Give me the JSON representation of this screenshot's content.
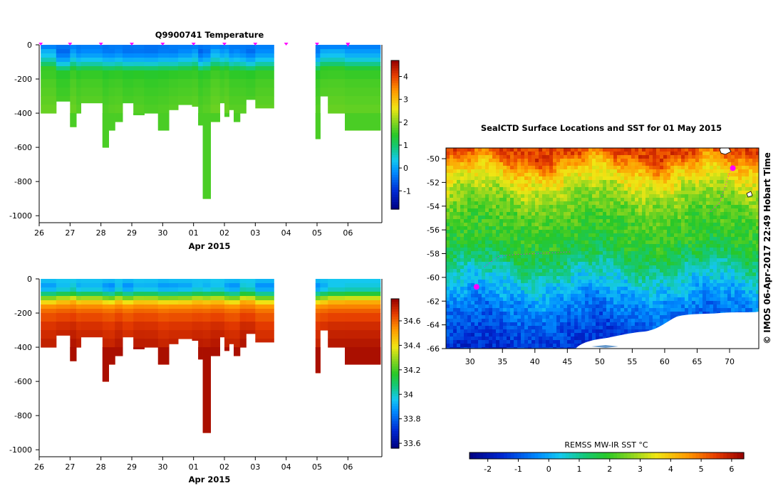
{
  "chart_data": [
    {
      "type": "heatmap",
      "name": "temperature-section",
      "title": "Q9900741  Temperature",
      "xlabel": "Apr 2015",
      "x_tick_labels": [
        "26",
        "27",
        "28",
        "29",
        "30",
        "01",
        "02",
        "03",
        "04",
        "05",
        "06"
      ],
      "x_range": [
        26,
        37.1
      ],
      "y_ticks": [
        0,
        -200,
        -400,
        -600,
        -800,
        -1000
      ],
      "ylim": [
        -1020,
        0
      ],
      "colorbar": {
        "min": -1.8,
        "max": 4.7,
        "ticks": [
          -1,
          0,
          1,
          2,
          3,
          4
        ]
      },
      "profile_dates": [
        26.05,
        27.0,
        28.0,
        29.0,
        30.0,
        31.0,
        32.0,
        33.0,
        34.0,
        35.0,
        36.0
      ],
      "gap": [
        34.35,
        34.95
      ],
      "depth_bins": [
        0,
        -25,
        -50,
        -75,
        -100,
        -125,
        -150,
        -200,
        -250,
        -300,
        -350,
        -400
      ],
      "profile_levels": [
        -0.3,
        -0.2,
        0.0,
        0.3,
        0.7,
        1.2,
        1.5,
        1.6,
        1.65,
        1.7,
        1.75,
        1.75
      ],
      "profiles": [
        {
          "x0": 26.05,
          "x1": 26.55,
          "max_depth": 400
        },
        {
          "x0": 26.55,
          "x1": 27.0,
          "max_depth": 330
        },
        {
          "x0": 27.0,
          "x1": 27.2,
          "max_depth": 480
        },
        {
          "x0": 27.2,
          "x1": 27.35,
          "max_depth": 400
        },
        {
          "x0": 27.35,
          "x1": 28.05,
          "max_depth": 340
        },
        {
          "x0": 28.05,
          "x1": 28.25,
          "max_depth": 600
        },
        {
          "x0": 28.25,
          "x1": 28.45,
          "max_depth": 500
        },
        {
          "x0": 28.45,
          "x1": 28.7,
          "max_depth": 450
        },
        {
          "x0": 28.7,
          "x1": 29.05,
          "max_depth": 340
        },
        {
          "x0": 29.05,
          "x1": 29.4,
          "max_depth": 410
        },
        {
          "x0": 29.4,
          "x1": 29.85,
          "max_depth": 400
        },
        {
          "x0": 29.85,
          "x1": 30.2,
          "max_depth": 500
        },
        {
          "x0": 30.2,
          "x1": 30.5,
          "max_depth": 380
        },
        {
          "x0": 30.5,
          "x1": 30.95,
          "max_depth": 350
        },
        {
          "x0": 30.95,
          "x1": 31.15,
          "max_depth": 360
        },
        {
          "x0": 31.15,
          "x1": 31.3,
          "max_depth": 470
        },
        {
          "x0": 31.3,
          "x1": 31.55,
          "max_depth": 900
        },
        {
          "x0": 31.55,
          "x1": 31.85,
          "max_depth": 450
        },
        {
          "x0": 31.85,
          "x1": 32.0,
          "max_depth": 340
        },
        {
          "x0": 32.0,
          "x1": 32.15,
          "max_depth": 420
        },
        {
          "x0": 32.15,
          "x1": 32.3,
          "max_depth": 380
        },
        {
          "x0": 32.3,
          "x1": 32.5,
          "max_depth": 450
        },
        {
          "x0": 32.5,
          "x1": 32.7,
          "max_depth": 400
        },
        {
          "x0": 32.7,
          "x1": 33.0,
          "max_depth": 320
        },
        {
          "x0": 33.0,
          "x1": 33.6,
          "max_depth": 370
        },
        {
          "x0": 34.95,
          "x1": 35.1,
          "max_depth": 550
        },
        {
          "x0": 35.1,
          "x1": 35.35,
          "max_depth": 300
        },
        {
          "x0": 35.35,
          "x1": 35.9,
          "max_depth": 400
        },
        {
          "x0": 35.9,
          "x1": 37.05,
          "max_depth": 500
        }
      ]
    },
    {
      "type": "heatmap",
      "name": "salinity-section",
      "title": "",
      "xlabel": "Apr 2015",
      "x_tick_labels": [
        "26",
        "27",
        "28",
        "29",
        "30",
        "01",
        "02",
        "03",
        "04",
        "05",
        "06"
      ],
      "x_range": [
        26,
        37.1
      ],
      "y_ticks": [
        0,
        -200,
        -400,
        -600,
        -800,
        -1000
      ],
      "ylim": [
        -1020,
        0
      ],
      "colorbar": {
        "min": 33.56,
        "max": 34.78,
        "ticks": [
          33.6,
          33.8,
          34,
          34.2,
          34.4,
          34.6
        ]
      },
      "depth_bins": [
        0,
        -25,
        -50,
        -75,
        -100,
        -125,
        -150,
        -175,
        -200,
        -250,
        -300,
        -350,
        -400
      ],
      "profile_levels": [
        33.95,
        33.93,
        33.97,
        34.1,
        34.3,
        34.45,
        34.55,
        34.6,
        34.64,
        34.68,
        34.7,
        34.72,
        34.73
      ]
    },
    {
      "type": "heatmap",
      "name": "sst-map",
      "title": "SealCTD Surface Locations and SST for 01 May 2015",
      "xlabel": "",
      "x_ticks": [
        30,
        35,
        40,
        45,
        50,
        55,
        60,
        65,
        70
      ],
      "y_ticks": [
        -50,
        -52,
        -54,
        -56,
        -58,
        -60,
        -62,
        -64,
        -66
      ],
      "xlim": [
        26.3,
        74.5
      ],
      "ylim": [
        -66,
        -49.1
      ],
      "side_label": "© IMOS 06-Apr-2017 22:49 Hobart Time",
      "colorbar": {
        "label": "REMSS MW-IR SST °C",
        "min": -2.6,
        "max": 6.4,
        "ticks": [
          -2,
          -1,
          0,
          1,
          2,
          3,
          4,
          5,
          6
        ]
      },
      "sst_by_latitude": [
        {
          "lat": -49.5,
          "sst": 5.5
        },
        {
          "lat": -51.0,
          "sst": 4.0
        },
        {
          "lat": -53.0,
          "sst": 2.8
        },
        {
          "lat": -55.0,
          "sst": 2.2
        },
        {
          "lat": -57.0,
          "sst": 1.9
        },
        {
          "lat": -58.5,
          "sst": 1.4
        },
        {
          "lat": -60.0,
          "sst": 0.6
        },
        {
          "lat": -62.0,
          "sst": -0.3
        },
        {
          "lat": -64.0,
          "sst": -1.0
        },
        {
          "lat": -66.0,
          "sst": -1.5
        }
      ],
      "seal_locations": [
        {
          "lon": 31.0,
          "lat": -60.8
        },
        {
          "lon": 70.5,
          "lat": -50.8
        }
      ]
    }
  ]
}
